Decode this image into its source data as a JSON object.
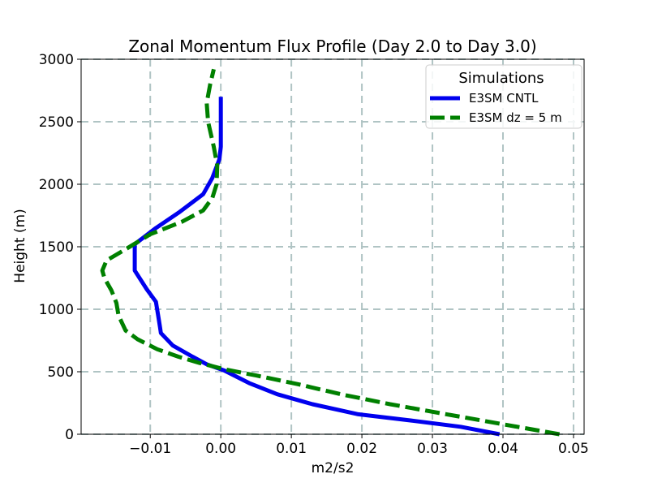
{
  "chart_data": {
    "type": "line",
    "title": "Zonal Momentum Flux Profile (Day 2.0 to Day 3.0)",
    "xlabel": "m2/s2",
    "ylabel": "Height (m)",
    "xlim": [
      -0.0198,
      0.0515
    ],
    "ylim": [
      0,
      3000
    ],
    "xticks": [
      -0.01,
      0.0,
      0.01,
      0.02,
      0.03,
      0.04,
      0.05
    ],
    "xtick_labels": [
      "−0.01",
      "0.00",
      "0.01",
      "0.02",
      "0.03",
      "0.04",
      "0.05"
    ],
    "yticks": [
      0,
      500,
      1000,
      1500,
      2000,
      2500,
      3000
    ],
    "ytick_labels": [
      "0",
      "500",
      "1000",
      "1500",
      "2000",
      "2500",
      "3000"
    ],
    "grid": true,
    "legend": {
      "title": "Simulations",
      "position": "top-right"
    },
    "series": [
      {
        "name": "E3SM CNTL",
        "color": "#0000ee",
        "style": "solid",
        "x": [
          0.0395,
          0.034,
          0.027,
          0.0195,
          0.013,
          0.008,
          0.004,
          0.0005,
          -0.002,
          -0.004,
          -0.0068,
          -0.0085,
          -0.0086,
          -0.0088,
          -0.0092,
          -0.0105,
          -0.0122,
          -0.0122,
          -0.0122,
          -0.0092,
          -0.0058,
          -0.0025,
          -0.0012,
          -0.0002,
          0.0,
          0.0,
          0.0,
          0.0
        ],
        "y": [
          0,
          60,
          110,
          160,
          240,
          320,
          410,
          510,
          560,
          620,
          710,
          810,
          850,
          920,
          1060,
          1160,
          1310,
          1460,
          1520,
          1650,
          1780,
          1920,
          2050,
          2200,
          2300,
          2400,
          2550,
          2700
        ]
      },
      {
        "name": "E3SM dz = 5 m",
        "color": "#008000",
        "style": "dashed",
        "x": [
          0.048,
          0.04,
          0.032,
          0.024,
          0.017,
          0.011,
          0.005,
          0.0005,
          -0.003,
          -0.006,
          -0.009,
          -0.0118,
          -0.0135,
          -0.0145,
          -0.0148,
          -0.0155,
          -0.0165,
          -0.0168,
          -0.0162,
          -0.0135,
          -0.01,
          -0.0055,
          -0.0025,
          -0.0012,
          -0.0006,
          -0.0005,
          -0.001,
          -0.0018,
          -0.002,
          -0.0015,
          -0.001
        ],
        "y": [
          0,
          80,
          160,
          240,
          320,
          400,
          470,
          520,
          570,
          620,
          680,
          760,
          830,
          950,
          1050,
          1150,
          1250,
          1310,
          1390,
          1480,
          1600,
          1700,
          1790,
          1890,
          2000,
          2150,
          2300,
          2500,
          2650,
          2800,
          2920
        ]
      }
    ]
  }
}
